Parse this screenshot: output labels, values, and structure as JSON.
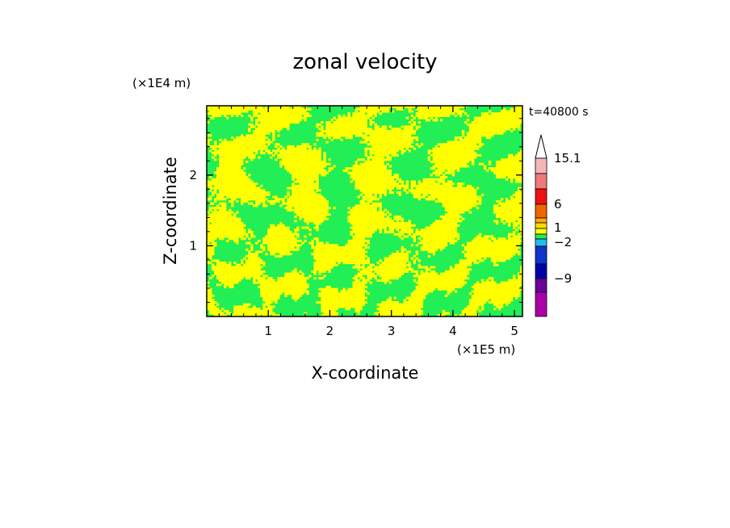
{
  "chart_data": {
    "type": "heatmap",
    "title": "zonal velocity",
    "xlabel": "X-coordinate",
    "ylabel": "Z-coordinate",
    "x_unit": "(×1E5 m)",
    "y_unit": "(×1E4 m)",
    "time_label": "t=40800 s",
    "xlim": [
      0,
      5.13
    ],
    "ylim": [
      0,
      2.98
    ],
    "x_ticks": [
      1,
      2,
      3,
      4,
      5
    ],
    "y_ticks": [
      1,
      2
    ],
    "x_tick_labels": [
      "1",
      "2",
      "3",
      "4",
      "5"
    ],
    "y_tick_labels": [
      "1",
      "2"
    ],
    "field_colors": {
      "green_band": "#22ee55",
      "yellow_band": "#ffff00"
    },
    "colorbar": {
      "levels_top_to_bottom": [
        {
          "color": "#ffffff"
        },
        {
          "color": "#f4b6b6"
        },
        {
          "color": "#ee7a7a"
        },
        {
          "color": "#ee1111"
        },
        {
          "color": "#ee6600"
        },
        {
          "color": "#ffaa00"
        },
        {
          "color": "#ffdd00"
        },
        {
          "color": "#ffff00"
        },
        {
          "color": "#22ee55"
        },
        {
          "color": "#22bbee"
        },
        {
          "color": "#1133cc"
        },
        {
          "color": "#0000aa"
        },
        {
          "color": "#6a0099"
        },
        {
          "color": "#aa00aa"
        },
        {
          "color": "#ee00aa"
        }
      ],
      "labels": [
        {
          "text": "15.1"
        },
        {
          "text": "6"
        },
        {
          "text": "1"
        },
        {
          "text": "−2"
        },
        {
          "text": "−9"
        }
      ]
    }
  }
}
